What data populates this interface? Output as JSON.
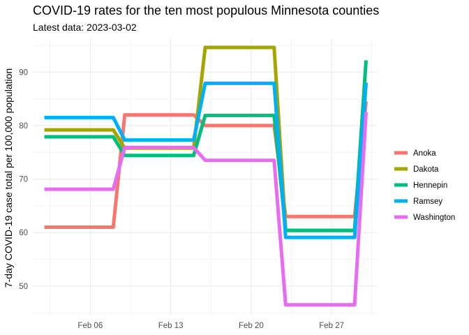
{
  "chart_data": {
    "type": "line",
    "title": "COVID-19 rates for the ten most populous Minnesota counties",
    "subtitle": "Latest data: 2023-03-02",
    "xlabel": "",
    "ylabel": "7-day COVID-19 case total per 100,000 population",
    "x_ticks": [
      {
        "date": "2023-02-06",
        "label": "Feb 06"
      },
      {
        "date": "2023-02-13",
        "label": "Feb 13"
      },
      {
        "date": "2023-02-20",
        "label": "Feb 20"
      },
      {
        "date": "2023-02-27",
        "label": "Feb 27"
      }
    ],
    "y_ticks": [
      50,
      60,
      70,
      80,
      90
    ],
    "xlim": [
      "2023-02-01",
      "2023-03-03"
    ],
    "ylim": [
      44.5,
      96.3
    ],
    "grid": true,
    "legend_position": "right",
    "series": [
      {
        "name": "Anoka",
        "color": "#F8766D",
        "points": [
          [
            "2023-02-02",
            61.0
          ],
          [
            "2023-02-08",
            61.0
          ],
          [
            "2023-02-09",
            82.0
          ],
          [
            "2023-02-15",
            82.0
          ],
          [
            "2023-02-16",
            80.0
          ],
          [
            "2023-02-22",
            80.0
          ],
          [
            "2023-02-23",
            63.0
          ],
          [
            "2023-03-01",
            63.0
          ],
          [
            "2023-03-02",
            84.5
          ]
        ]
      },
      {
        "name": "Dakota",
        "color": "#A3A500",
        "points": [
          [
            "2023-02-02",
            79.2
          ],
          [
            "2023-02-08",
            79.2
          ],
          [
            "2023-02-09",
            75.8
          ],
          [
            "2023-02-15",
            75.8
          ],
          [
            "2023-02-16",
            94.6
          ],
          [
            "2023-02-22",
            94.6
          ],
          [
            "2023-02-23",
            60.4
          ],
          [
            "2023-03-01",
            60.4
          ],
          [
            "2023-03-02",
            88.0
          ]
        ]
      },
      {
        "name": "Hennepin",
        "color": "#00BF7D",
        "points": [
          [
            "2023-02-02",
            77.9
          ],
          [
            "2023-02-08",
            77.9
          ],
          [
            "2023-02-09",
            74.4
          ],
          [
            "2023-02-15",
            74.4
          ],
          [
            "2023-02-16",
            81.9
          ],
          [
            "2023-02-22",
            81.9
          ],
          [
            "2023-02-23",
            60.4
          ],
          [
            "2023-03-01",
            60.4
          ],
          [
            "2023-03-02",
            92.2
          ]
        ]
      },
      {
        "name": "Ramsey",
        "color": "#00B0F6",
        "points": [
          [
            "2023-02-02",
            81.5
          ],
          [
            "2023-02-08",
            81.5
          ],
          [
            "2023-02-09",
            77.3
          ],
          [
            "2023-02-15",
            77.3
          ],
          [
            "2023-02-16",
            87.9
          ],
          [
            "2023-02-22",
            87.9
          ],
          [
            "2023-02-23",
            59.1
          ],
          [
            "2023-03-01",
            59.1
          ],
          [
            "2023-03-02",
            88.0
          ]
        ]
      },
      {
        "name": "Washington",
        "color": "#E76BF3",
        "points": [
          [
            "2023-02-02",
            68.1
          ],
          [
            "2023-02-08",
            68.1
          ],
          [
            "2023-02-09",
            75.9
          ],
          [
            "2023-02-15",
            75.9
          ],
          [
            "2023-02-16",
            73.5
          ],
          [
            "2023-02-22",
            73.5
          ],
          [
            "2023-02-23",
            46.5
          ],
          [
            "2023-03-01",
            46.5
          ],
          [
            "2023-03-02",
            82.5
          ]
        ]
      }
    ]
  }
}
